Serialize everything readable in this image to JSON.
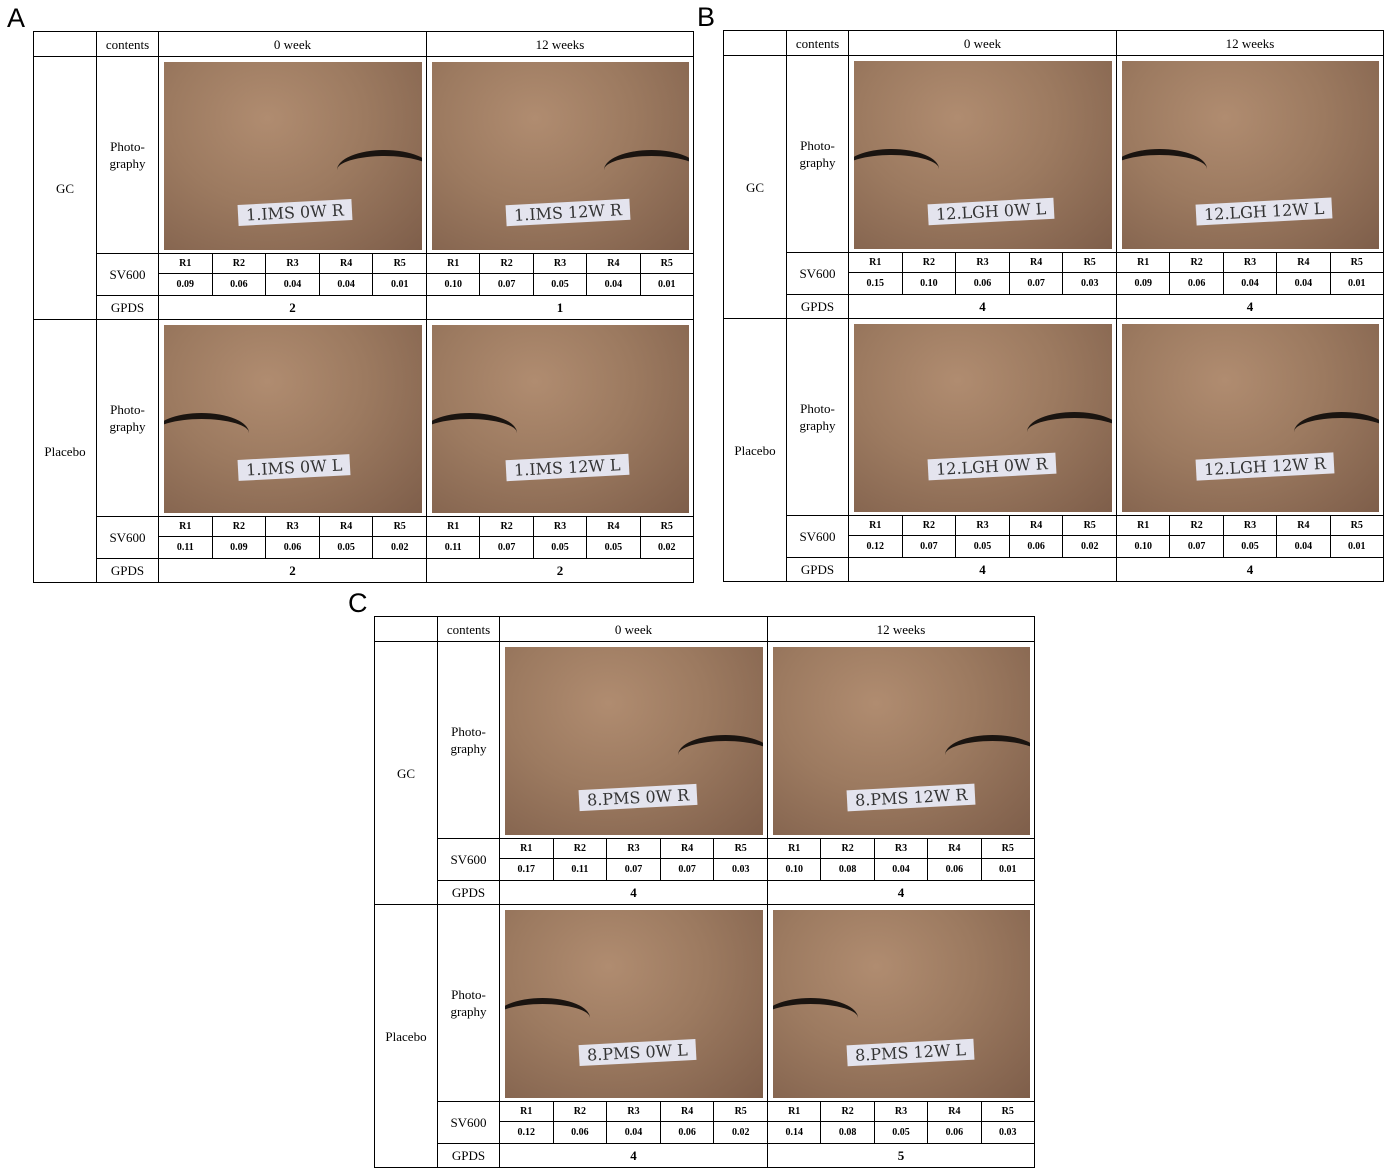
{
  "panels": [
    {
      "label": "A",
      "header": {
        "contents": "contents",
        "col1": "0 week",
        "col2": "12 weeks"
      },
      "groups": [
        {
          "name": "GC",
          "photo_label": [
            "Photo-",
            "graphy"
          ],
          "photos": [
            "1.IMS 0W R",
            "1.IMS 12W R"
          ],
          "sv600": "SV600",
          "regions": [
            [
              "R1",
              "R2",
              "R3",
              "R4",
              "R5"
            ],
            [
              "R1",
              "R2",
              "R3",
              "R4",
              "R5"
            ]
          ],
          "values": [
            [
              "0.09",
              "0.06",
              "0.04",
              "0.04",
              "0.01"
            ],
            [
              "0.10",
              "0.07",
              "0.05",
              "0.04",
              "0.01"
            ]
          ],
          "gpds_label": "GPDS",
          "gpds": [
            "2",
            "1"
          ]
        },
        {
          "name": "Placebo",
          "photo_label": [
            "Photo-",
            "graphy"
          ],
          "photos": [
            "1.IMS 0W L",
            "1.IMS 12W L"
          ],
          "sv600": "SV600",
          "regions": [
            [
              "R1",
              "R2",
              "R3",
              "R4",
              "R5"
            ],
            [
              "R1",
              "R2",
              "R3",
              "R4",
              "R5"
            ]
          ],
          "values": [
            [
              "0.11",
              "0.09",
              "0.06",
              "0.05",
              "0.02"
            ],
            [
              "0.11",
              "0.07",
              "0.05",
              "0.05",
              "0.02"
            ]
          ],
          "gpds_label": "GPDS",
          "gpds": [
            "2",
            "2"
          ]
        }
      ]
    },
    {
      "label": "B",
      "header": {
        "contents": "contents",
        "col1": "0 week",
        "col2": "12 weeks"
      },
      "groups": [
        {
          "name": "GC",
          "photo_label": [
            "Photo-",
            "graphy"
          ],
          "photos": [
            "12.LGH 0W L",
            "12.LGH 12W L"
          ],
          "sv600": "SV600",
          "regions": [
            [
              "R1",
              "R2",
              "R3",
              "R4",
              "R5"
            ],
            [
              "R1",
              "R2",
              "R3",
              "R4",
              "R5"
            ]
          ],
          "values": [
            [
              "0.15",
              "0.10",
              "0.06",
              "0.07",
              "0.03"
            ],
            [
              "0.09",
              "0.06",
              "0.04",
              "0.04",
              "0.01"
            ]
          ],
          "gpds_label": "GPDS",
          "gpds": [
            "4",
            "4"
          ]
        },
        {
          "name": "Placebo",
          "photo_label": [
            "Photo-",
            "graphy"
          ],
          "photos": [
            "12.LGH 0W R",
            "12.LGH 12W R"
          ],
          "sv600": "SV600",
          "regions": [
            [
              "R1",
              "R2",
              "R3",
              "R4",
              "R5"
            ],
            [
              "R1",
              "R2",
              "R3",
              "R4",
              "R5"
            ]
          ],
          "values": [
            [
              "0.12",
              "0.07",
              "0.05",
              "0.06",
              "0.02"
            ],
            [
              "0.10",
              "0.07",
              "0.05",
              "0.04",
              "0.01"
            ]
          ],
          "gpds_label": "GPDS",
          "gpds": [
            "4",
            "4"
          ]
        }
      ]
    },
    {
      "label": "C",
      "header": {
        "contents": "contents",
        "col1": "0 week",
        "col2": "12 weeks"
      },
      "groups": [
        {
          "name": "GC",
          "photo_label": [
            "Photo-",
            "graphy"
          ],
          "photos": [
            "8.PMS 0W R",
            "8.PMS 12W R"
          ],
          "sv600": "SV600",
          "regions": [
            [
              "R1",
              "R2",
              "R3",
              "R4",
              "R5"
            ],
            [
              "R1",
              "R2",
              "R3",
              "R4",
              "R5"
            ]
          ],
          "values": [
            [
              "0.17",
              "0.11",
              "0.07",
              "0.07",
              "0.03"
            ],
            [
              "0.10",
              "0.08",
              "0.04",
              "0.06",
              "0.01"
            ]
          ],
          "gpds_label": "GPDS",
          "gpds": [
            "4",
            "4"
          ]
        },
        {
          "name": "Placebo",
          "photo_label": [
            "Photo-",
            "graphy"
          ],
          "photos": [
            "8.PMS 0W L",
            "8.PMS 12W L"
          ],
          "sv600": "SV600",
          "regions": [
            [
              "R1",
              "R2",
              "R3",
              "R4",
              "R5"
            ],
            [
              "R1",
              "R2",
              "R3",
              "R4",
              "R5"
            ]
          ],
          "values": [
            [
              "0.12",
              "0.06",
              "0.04",
              "0.06",
              "0.02"
            ],
            [
              "0.14",
              "0.08",
              "0.05",
              "0.06",
              "0.03"
            ]
          ],
          "gpds_label": "GPDS",
          "gpds": [
            "4",
            "5"
          ]
        }
      ]
    }
  ]
}
